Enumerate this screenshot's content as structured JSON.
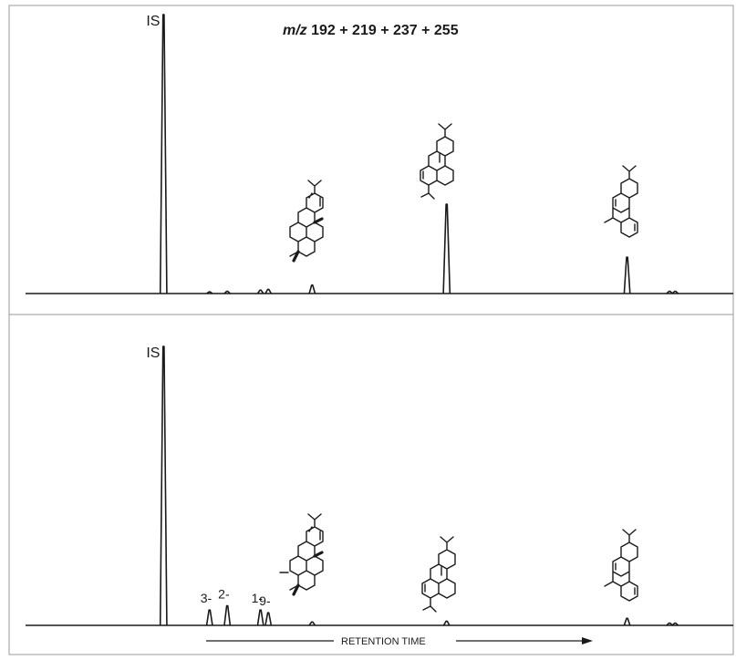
{
  "chart_data": [
    {
      "type": "line",
      "title_italic": "m/z",
      "title_rest": " 192 + 219 + 237 + 255",
      "xlabel": "RETENTION TIME",
      "ylabel": "",
      "xlim": [
        0,
        100
      ],
      "ylim": [
        0,
        100
      ],
      "grid": false,
      "peaks": [
        {
          "label": "IS",
          "x": 19.5,
          "height": 100
        },
        {
          "label": "",
          "x": 26.0,
          "height": 0.6
        },
        {
          "label": "",
          "x": 28.5,
          "height": 0.8
        },
        {
          "label": "",
          "x": 33.2,
          "height": 1.2
        },
        {
          "label": "",
          "x": 34.3,
          "height": 1.5
        },
        {
          "label": "",
          "x": 40.5,
          "height": 3.0
        },
        {
          "label": "",
          "x": 59.5,
          "height": 32
        },
        {
          "label": "",
          "x": 85.0,
          "height": 13
        },
        {
          "label": "",
          "x": 91.0,
          "height": 0.8
        },
        {
          "label": "",
          "x": 91.8,
          "height": 0.8
        }
      ]
    },
    {
      "type": "line",
      "title_italic": "",
      "title_rest": "",
      "xlabel": "RETENTION TIME",
      "ylabel": "",
      "xlim": [
        0,
        100
      ],
      "ylim": [
        0,
        100
      ],
      "grid": false,
      "peaks": [
        {
          "label": "IS",
          "x": 19.5,
          "height": 100
        },
        {
          "label": "3-",
          "x": 26.0,
          "height": 5.5
        },
        {
          "label": "2-",
          "x": 28.5,
          "height": 7.0
        },
        {
          "label": "1-",
          "x": 33.2,
          "height": 5.5
        },
        {
          "label": "9-",
          "x": 34.3,
          "height": 4.5
        },
        {
          "label": "",
          "x": 40.5,
          "height": 1.2
        },
        {
          "label": "",
          "x": 59.5,
          "height": 1.5
        },
        {
          "label": "",
          "x": 85.0,
          "height": 2.5
        },
        {
          "label": "",
          "x": 91.0,
          "height": 0.8
        },
        {
          "label": "",
          "x": 91.8,
          "height": 0.8
        }
      ]
    }
  ]
}
